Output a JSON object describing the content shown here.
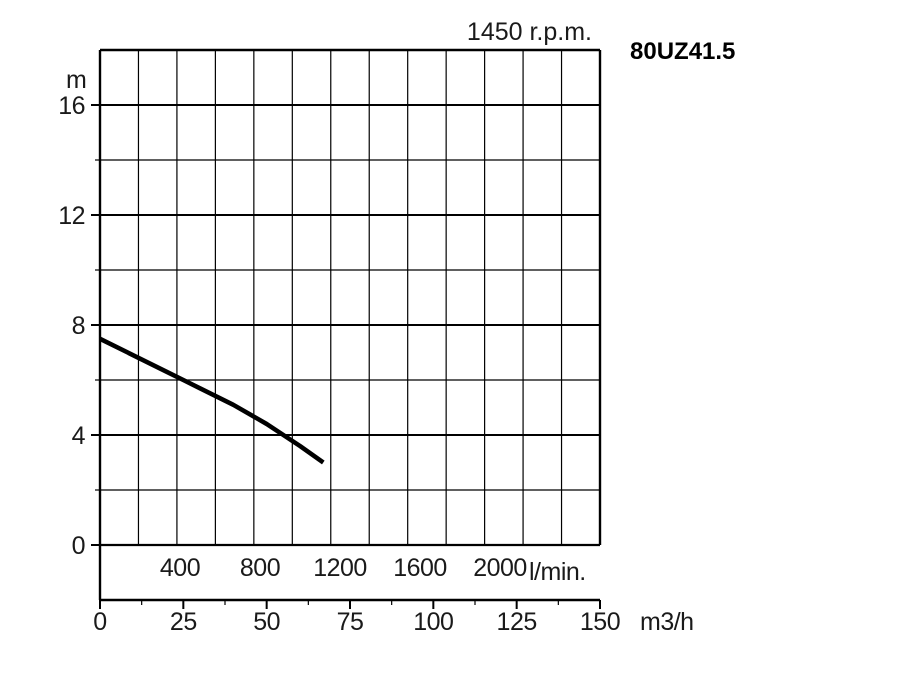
{
  "chart_data": {
    "type": "line",
    "title": "80UZ41.5",
    "subtitle": "1450 r.p.m.",
    "ylabel": "m",
    "ylim": [
      -2,
      18
    ],
    "y_ticks": [
      "0",
      "4",
      "8",
      "12",
      "16"
    ],
    "x_units_lmin": "l/min.",
    "x_units_m3h": "m3/h",
    "xlim_m3h": [
      0,
      150
    ],
    "x_ticks_m3h": [
      "0",
      "25",
      "50",
      "75",
      "100",
      "125",
      "150"
    ],
    "x_ticks_lmin": [
      "400",
      "800",
      "1200",
      "1600",
      "2000"
    ],
    "grid": true,
    "series": [
      {
        "x": [
          0,
          10,
          20,
          25,
          30,
          40,
          50,
          60,
          67
        ],
        "y": [
          7.5,
          6.9,
          6.3,
          6.0,
          5.7,
          5.1,
          4.4,
          3.6,
          3.0
        ]
      }
    ]
  }
}
